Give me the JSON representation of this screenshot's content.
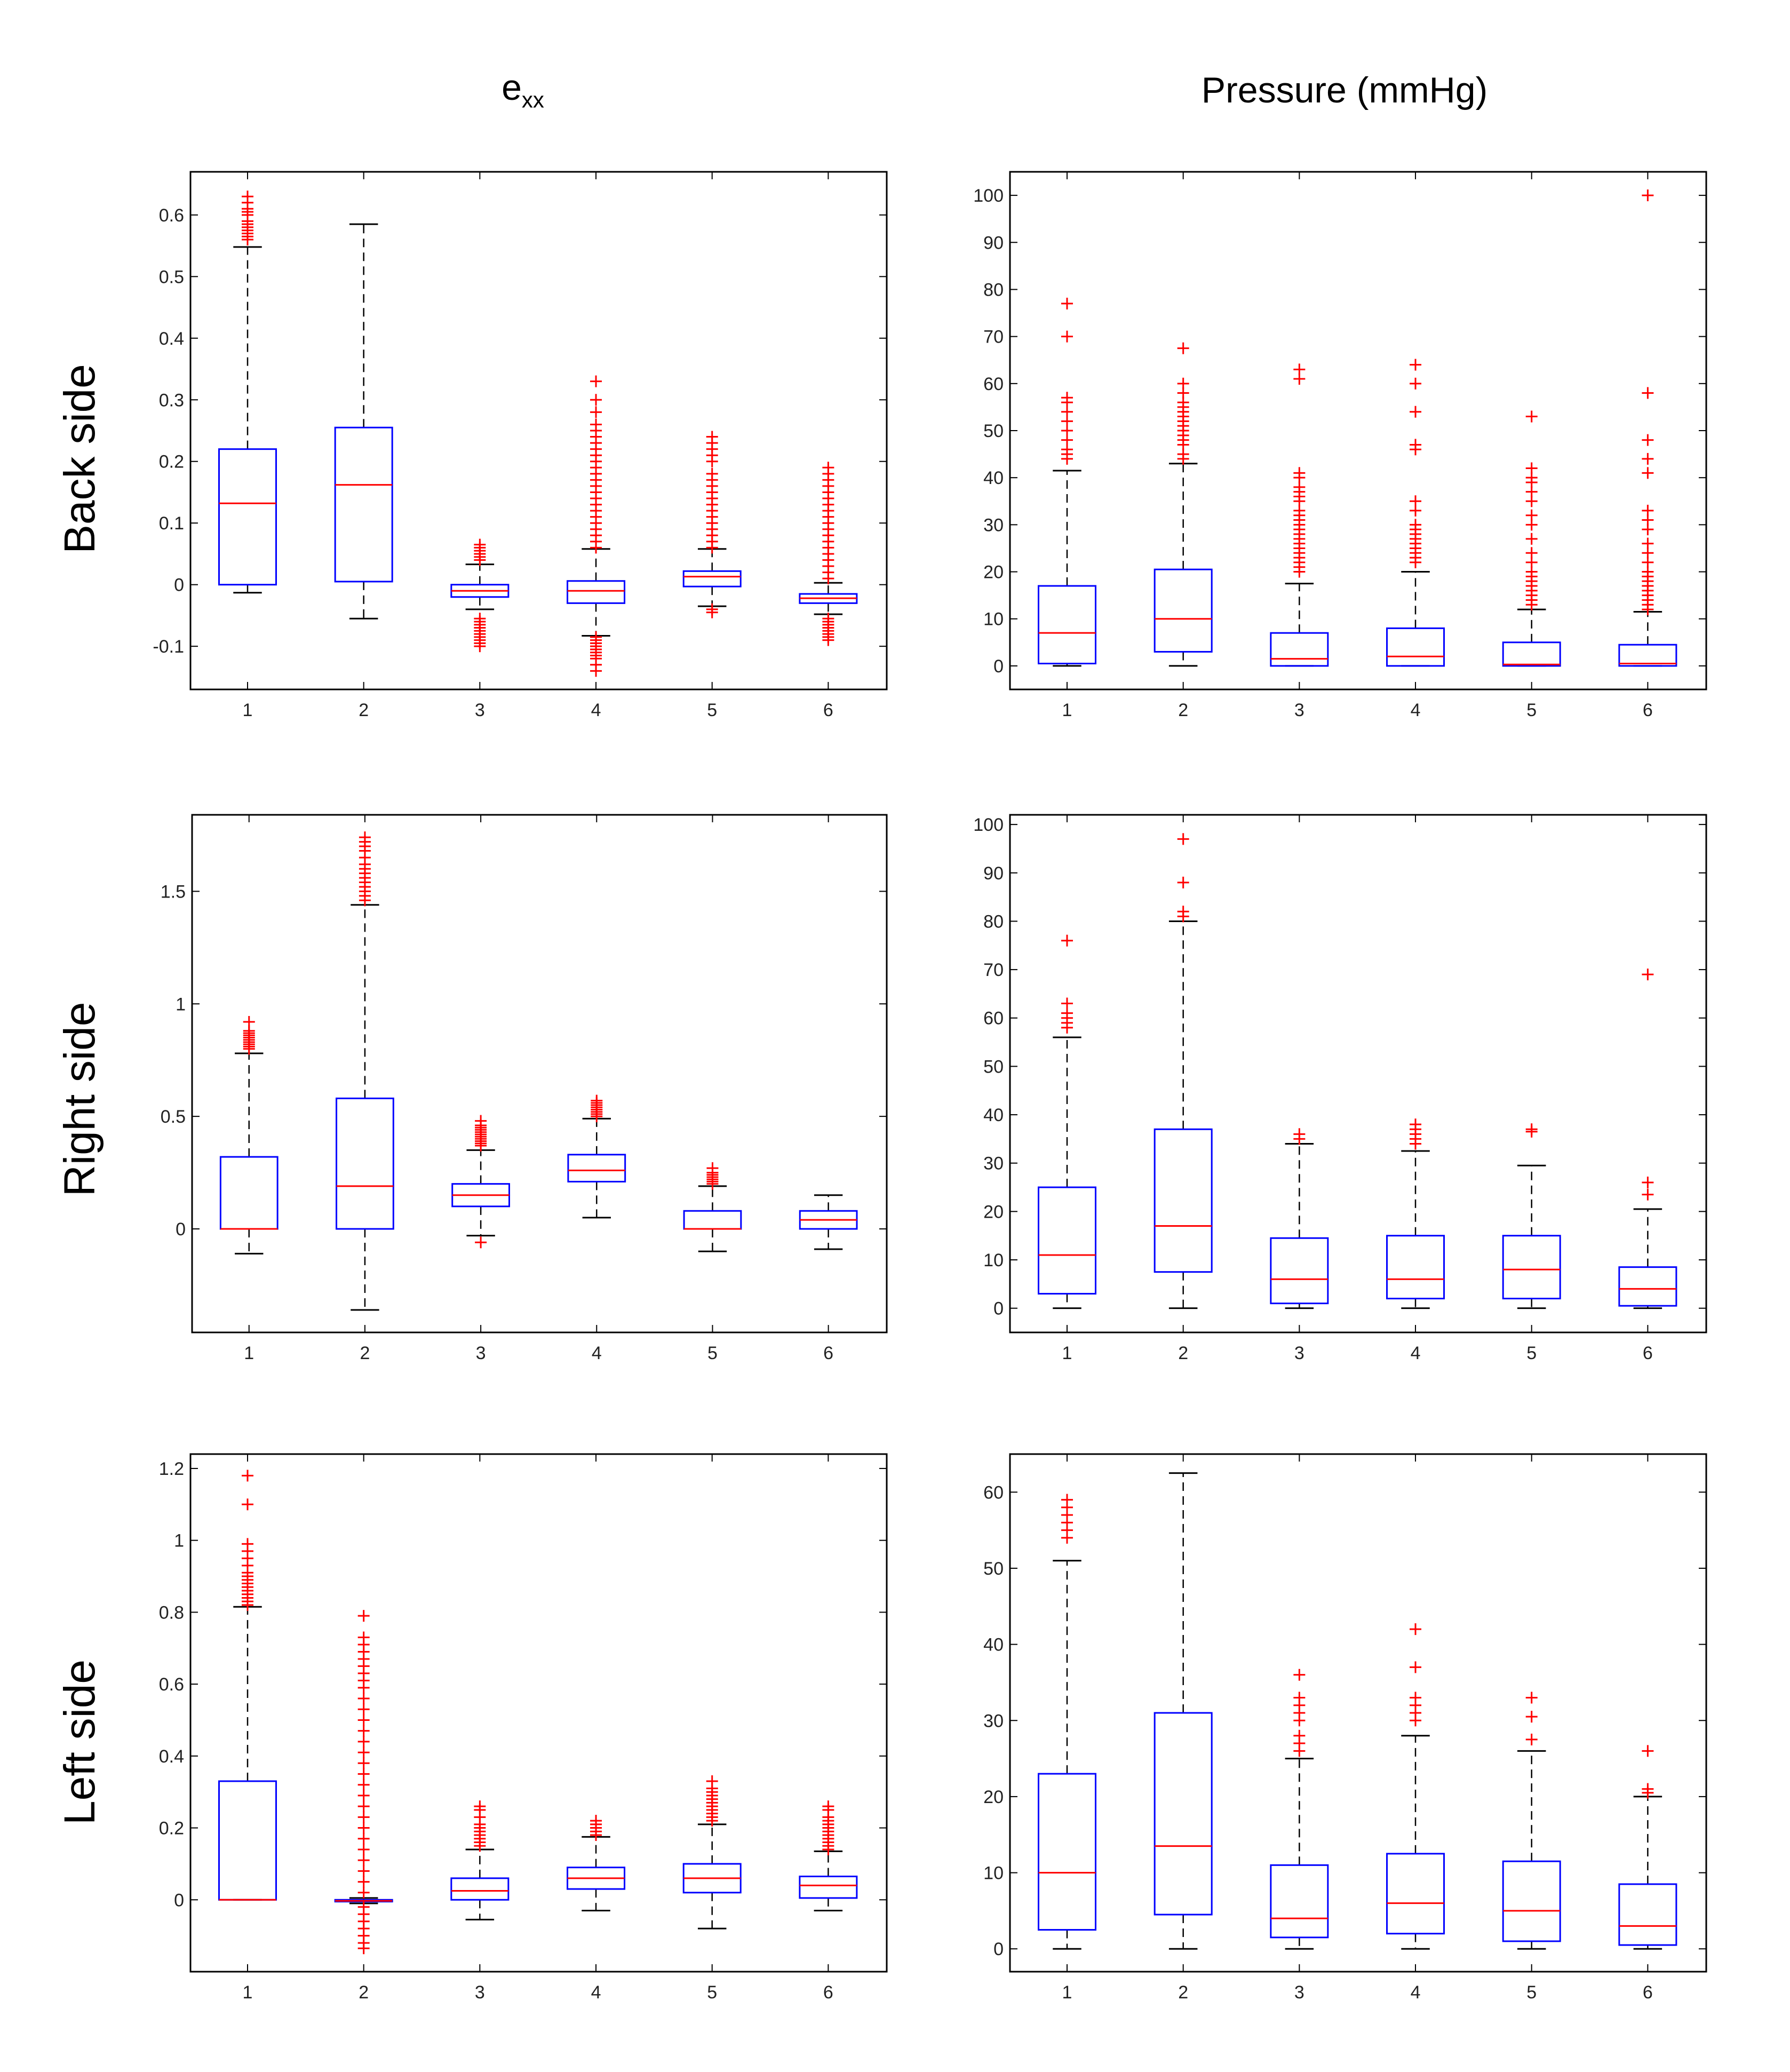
{
  "column_titles": {
    "left_main": "e",
    "left_sub": "xx",
    "right": "Pressure (mmHg)"
  },
  "row_titles": [
    "Back side",
    "Right side",
    "Left side"
  ],
  "colors": {
    "box": "#0000ff",
    "median": "#ff0000",
    "whisker": "#000000",
    "outlier": "#ff0000",
    "axes": "#000000"
  },
  "chart_data": [
    {
      "type": "box",
      "row": "Back side",
      "column": "e_xx",
      "categories": [
        "1",
        "2",
        "3",
        "4",
        "5",
        "6"
      ],
      "ylim": [
        -0.17,
        0.67
      ],
      "yticks": [
        -0.1,
        0,
        0.1,
        0.2,
        0.3,
        0.4,
        0.5,
        0.6
      ],
      "ytick_labels": [
        "-0.1",
        "0",
        "0.1",
        "0.2",
        "0.3",
        "0.4",
        "0.5",
        "0.6"
      ],
      "boxes": [
        {
          "whislo": -0.013,
          "q1": 0.0,
          "med": 0.132,
          "q3": 0.22,
          "whishi": 0.548,
          "fliers": [
            0.56,
            0.565,
            0.57,
            0.575,
            0.58,
            0.585,
            0.59,
            0.6,
            0.605,
            0.61,
            0.62,
            0.63
          ]
        },
        {
          "whislo": -0.055,
          "q1": 0.005,
          "med": 0.162,
          "q3": 0.255,
          "whishi": 0.585,
          "fliers": []
        },
        {
          "whislo": -0.04,
          "q1": -0.02,
          "med": -0.01,
          "q3": 0.0,
          "whishi": 0.033,
          "fliers": [
            0.04,
            0.045,
            0.05,
            0.055,
            0.06,
            0.065,
            -0.055,
            -0.06,
            -0.065,
            -0.07,
            -0.075,
            -0.08,
            -0.085,
            -0.09,
            -0.095,
            -0.1
          ]
        },
        {
          "whislo": -0.083,
          "q1": -0.03,
          "med": -0.01,
          "q3": 0.006,
          "whishi": 0.058,
          "fliers": [
            0.06,
            0.07,
            0.08,
            0.09,
            0.1,
            0.11,
            0.12,
            0.13,
            0.14,
            0.15,
            0.16,
            0.17,
            0.18,
            0.19,
            0.2,
            0.21,
            0.22,
            0.23,
            0.24,
            0.25,
            0.26,
            0.28,
            0.3,
            0.33,
            -0.085,
            -0.09,
            -0.095,
            -0.1,
            -0.105,
            -0.11,
            -0.115,
            -0.12,
            -0.13,
            -0.14
          ]
        },
        {
          "whislo": -0.035,
          "q1": -0.003,
          "med": 0.013,
          "q3": 0.022,
          "whishi": 0.058,
          "fliers": [
            0.06,
            0.07,
            0.08,
            0.09,
            0.1,
            0.11,
            0.12,
            0.13,
            0.14,
            0.15,
            0.16,
            0.17,
            0.18,
            0.2,
            0.21,
            0.22,
            0.23,
            0.24,
            -0.04,
            -0.045
          ]
        },
        {
          "whislo": -0.048,
          "q1": -0.03,
          "med": -0.022,
          "q3": -0.015,
          "whishi": 0.003,
          "fliers": [
            0.01,
            0.02,
            0.03,
            0.04,
            0.05,
            0.06,
            0.07,
            0.08,
            0.09,
            0.1,
            0.11,
            0.12,
            0.13,
            0.14,
            0.15,
            0.16,
            0.17,
            0.18,
            0.19,
            -0.055,
            -0.06,
            -0.065,
            -0.07,
            -0.075,
            -0.08,
            -0.085,
            -0.09
          ]
        }
      ]
    },
    {
      "type": "box",
      "row": "Back side",
      "column": "Pressure (mmHg)",
      "categories": [
        "1",
        "2",
        "3",
        "4",
        "5",
        "6"
      ],
      "ylim": [
        -5,
        105
      ],
      "yticks": [
        0,
        10,
        20,
        30,
        40,
        50,
        60,
        70,
        80,
        90,
        100
      ],
      "ytick_labels": [
        "0",
        "10",
        "20",
        "30",
        "40",
        "50",
        "60",
        "70",
        "80",
        "90",
        "100"
      ],
      "boxes": [
        {
          "whislo": 0,
          "q1": 0.5,
          "med": 7,
          "q3": 17,
          "whishi": 41.5,
          "fliers": [
            44,
            45,
            46,
            48,
            50,
            52,
            54,
            56,
            57,
            70,
            77
          ]
        },
        {
          "whislo": 0,
          "q1": 3,
          "med": 10,
          "q3": 20.5,
          "whishi": 43,
          "fliers": [
            44,
            45,
            47,
            48,
            49,
            50,
            51,
            52,
            53,
            54,
            55,
            56,
            58,
            60,
            67.5
          ]
        },
        {
          "whislo": 0,
          "q1": 0,
          "med": 1.5,
          "q3": 7,
          "whishi": 17.5,
          "fliers": [
            20,
            21,
            22,
            23,
            24,
            25,
            26,
            27,
            28,
            29,
            30,
            31,
            32,
            33,
            35,
            36,
            37,
            38,
            40,
            41,
            61,
            63
          ]
        },
        {
          "whislo": 0,
          "q1": 0,
          "med": 2,
          "q3": 8,
          "whishi": 20,
          "fliers": [
            22,
            23,
            24,
            25,
            26,
            27,
            28,
            29,
            30,
            33,
            35,
            46,
            47,
            54,
            60,
            64
          ]
        },
        {
          "whislo": 0,
          "q1": 0,
          "med": 0.3,
          "q3": 5,
          "whishi": 12,
          "fliers": [
            13,
            14,
            15,
            16,
            17,
            18,
            19,
            20,
            22,
            24,
            27,
            30,
            32,
            35,
            37,
            39,
            40,
            42,
            53
          ]
        },
        {
          "whislo": 0,
          "q1": 0,
          "med": 0.5,
          "q3": 4.5,
          "whishi": 11.5,
          "fliers": [
            12,
            13,
            14,
            15,
            16,
            17,
            18,
            19,
            20,
            22,
            24,
            26,
            29,
            31,
            33,
            41,
            44,
            48,
            58,
            100
          ]
        }
      ]
    },
    {
      "type": "box",
      "row": "Right side",
      "column": "e_xx",
      "categories": [
        "1",
        "2",
        "3",
        "4",
        "5",
        "6"
      ],
      "ylim": [
        -0.46,
        1.84
      ],
      "yticks": [
        0,
        0.5,
        1,
        1.5
      ],
      "ytick_labels": [
        "0",
        "0.5",
        "1",
        "1.5"
      ],
      "boxes": [
        {
          "whislo": -0.11,
          "q1": 0.0,
          "med": 0.0,
          "q3": 0.32,
          "whishi": 0.78,
          "fliers": [
            0.8,
            0.81,
            0.82,
            0.83,
            0.84,
            0.85,
            0.86,
            0.87,
            0.88,
            0.92
          ]
        },
        {
          "whislo": -0.36,
          "q1": 0.0,
          "med": 0.19,
          "q3": 0.58,
          "whishi": 1.44,
          "fliers": [
            1.46,
            1.48,
            1.5,
            1.52,
            1.54,
            1.56,
            1.58,
            1.6,
            1.62,
            1.65,
            1.68,
            1.7,
            1.72,
            1.74
          ]
        },
        {
          "whislo": -0.03,
          "q1": 0.1,
          "med": 0.15,
          "q3": 0.2,
          "whishi": 0.35,
          "fliers": [
            0.37,
            0.38,
            0.39,
            0.4,
            0.41,
            0.42,
            0.43,
            0.44,
            0.45,
            0.46,
            0.48,
            -0.06
          ]
        },
        {
          "whislo": 0.05,
          "q1": 0.21,
          "med": 0.26,
          "q3": 0.33,
          "whishi": 0.49,
          "fliers": [
            0.5,
            0.51,
            0.52,
            0.53,
            0.54,
            0.55,
            0.56,
            0.57
          ]
        },
        {
          "whislo": -0.1,
          "q1": 0.0,
          "med": 0.0,
          "q3": 0.08,
          "whishi": 0.19,
          "fliers": [
            0.2,
            0.21,
            0.22,
            0.23,
            0.24,
            0.25,
            0.27
          ]
        },
        {
          "whislo": -0.09,
          "q1": 0.0,
          "med": 0.04,
          "q3": 0.08,
          "whishi": 0.15,
          "fliers": []
        }
      ]
    },
    {
      "type": "box",
      "row": "Right side",
      "column": "Pressure (mmHg)",
      "categories": [
        "1",
        "2",
        "3",
        "4",
        "5",
        "6"
      ],
      "ylim": [
        -5,
        102
      ],
      "yticks": [
        0,
        10,
        20,
        30,
        40,
        50,
        60,
        70,
        80,
        90,
        100
      ],
      "ytick_labels": [
        "0",
        "10",
        "20",
        "30",
        "40",
        "50",
        "60",
        "70",
        "80",
        "90",
        "100"
      ],
      "boxes": [
        {
          "whislo": 0,
          "q1": 3,
          "med": 11,
          "q3": 25,
          "whishi": 56,
          "fliers": [
            58,
            59,
            60,
            61,
            63,
            76
          ]
        },
        {
          "whislo": 0,
          "q1": 7.5,
          "med": 17,
          "q3": 37,
          "whishi": 80,
          "fliers": [
            81,
            82,
            88,
            97
          ]
        },
        {
          "whislo": 0,
          "q1": 1,
          "med": 6,
          "q3": 14.5,
          "whishi": 34,
          "fliers": [
            35,
            36
          ]
        },
        {
          "whislo": 0,
          "q1": 2,
          "med": 6,
          "q3": 15,
          "whishi": 32.5,
          "fliers": [
            34,
            35,
            36,
            37,
            38
          ]
        },
        {
          "whislo": 0,
          "q1": 2,
          "med": 8,
          "q3": 15,
          "whishi": 29.5,
          "fliers": [
            36.5,
            37
          ]
        },
        {
          "whislo": 0,
          "q1": 0.5,
          "med": 4,
          "q3": 8.5,
          "whishi": 20.5,
          "fliers": [
            23.5,
            26,
            69
          ]
        }
      ]
    },
    {
      "type": "box",
      "row": "Left side",
      "column": "e_xx",
      "categories": [
        "1",
        "2",
        "3",
        "4",
        "5",
        "6"
      ],
      "ylim": [
        -0.2,
        1.24
      ],
      "yticks": [
        0,
        0.2,
        0.4,
        0.6,
        0.8,
        1,
        1.2
      ],
      "ytick_labels": [
        "0",
        "0.2",
        "0.4",
        "0.6",
        "0.8",
        "1",
        "1.2"
      ],
      "boxes": [
        {
          "whislo": 0.0,
          "q1": 0.0,
          "med": 0.0,
          "q3": 0.33,
          "whishi": 0.815,
          "fliers": [
            0.82,
            0.83,
            0.84,
            0.85,
            0.86,
            0.87,
            0.88,
            0.89,
            0.9,
            0.91,
            0.93,
            0.95,
            0.97,
            0.99,
            1.1,
            1.18
          ]
        },
        {
          "whislo": -0.01,
          "q1": -0.005,
          "med": -0.003,
          "q3": 0.0,
          "whishi": 0.005,
          "fliers": [
            0.02,
            0.05,
            0.08,
            0.11,
            0.14,
            0.17,
            0.2,
            0.23,
            0.26,
            0.29,
            0.32,
            0.35,
            0.38,
            0.41,
            0.44,
            0.47,
            0.5,
            0.53,
            0.56,
            0.59,
            0.61,
            0.63,
            0.65,
            0.67,
            0.69,
            0.71,
            0.73,
            0.79,
            -0.02,
            -0.04,
            -0.06,
            -0.08,
            -0.1,
            -0.12,
            -0.135
          ]
        },
        {
          "whislo": -0.055,
          "q1": 0.0,
          "med": 0.025,
          "q3": 0.06,
          "whishi": 0.14,
          "fliers": [
            0.15,
            0.16,
            0.17,
            0.18,
            0.19,
            0.2,
            0.21,
            0.23,
            0.25,
            0.26
          ]
        },
        {
          "whislo": -0.03,
          "q1": 0.03,
          "med": 0.06,
          "q3": 0.09,
          "whishi": 0.175,
          "fliers": [
            0.18,
            0.19,
            0.2,
            0.21,
            0.22
          ]
        },
        {
          "whislo": -0.08,
          "q1": 0.02,
          "med": 0.06,
          "q3": 0.1,
          "whishi": 0.21,
          "fliers": [
            0.22,
            0.23,
            0.24,
            0.25,
            0.26,
            0.27,
            0.28,
            0.29,
            0.3,
            0.31,
            0.33
          ]
        },
        {
          "whislo": -0.03,
          "q1": 0.005,
          "med": 0.04,
          "q3": 0.065,
          "whishi": 0.135,
          "fliers": [
            0.14,
            0.15,
            0.16,
            0.17,
            0.18,
            0.19,
            0.2,
            0.21,
            0.22,
            0.23,
            0.25,
            0.26
          ]
        }
      ]
    },
    {
      "type": "box",
      "row": "Left side",
      "column": "Pressure (mmHg)",
      "categories": [
        "1",
        "2",
        "3",
        "4",
        "5",
        "6"
      ],
      "ylim": [
        -3,
        65
      ],
      "yticks": [
        0,
        10,
        20,
        30,
        40,
        50,
        60
      ],
      "ytick_labels": [
        "0",
        "10",
        "20",
        "30",
        "40",
        "50",
        "60"
      ],
      "boxes": [
        {
          "whislo": 0,
          "q1": 2.5,
          "med": 10,
          "q3": 23,
          "whishi": 51,
          "fliers": [
            54,
            55,
            56,
            57,
            58,
            59
          ]
        },
        {
          "whislo": 0,
          "q1": 4.5,
          "med": 13.5,
          "q3": 31,
          "whishi": 62.5,
          "fliers": []
        },
        {
          "whislo": 0,
          "q1": 1.5,
          "med": 4,
          "q3": 11,
          "whishi": 25,
          "fliers": [
            26,
            27,
            28,
            30,
            31,
            32,
            33,
            36
          ]
        },
        {
          "whislo": 0,
          "q1": 2,
          "med": 6,
          "q3": 12.5,
          "whishi": 28,
          "fliers": [
            30,
            31,
            32,
            33,
            37,
            42
          ]
        },
        {
          "whislo": 0,
          "q1": 1,
          "med": 5,
          "q3": 11.5,
          "whishi": 26,
          "fliers": [
            27.5,
            30.5,
            33
          ]
        },
        {
          "whislo": 0,
          "q1": 0.5,
          "med": 3,
          "q3": 8.5,
          "whishi": 20,
          "fliers": [
            20.5,
            21,
            26
          ]
        }
      ]
    }
  ]
}
